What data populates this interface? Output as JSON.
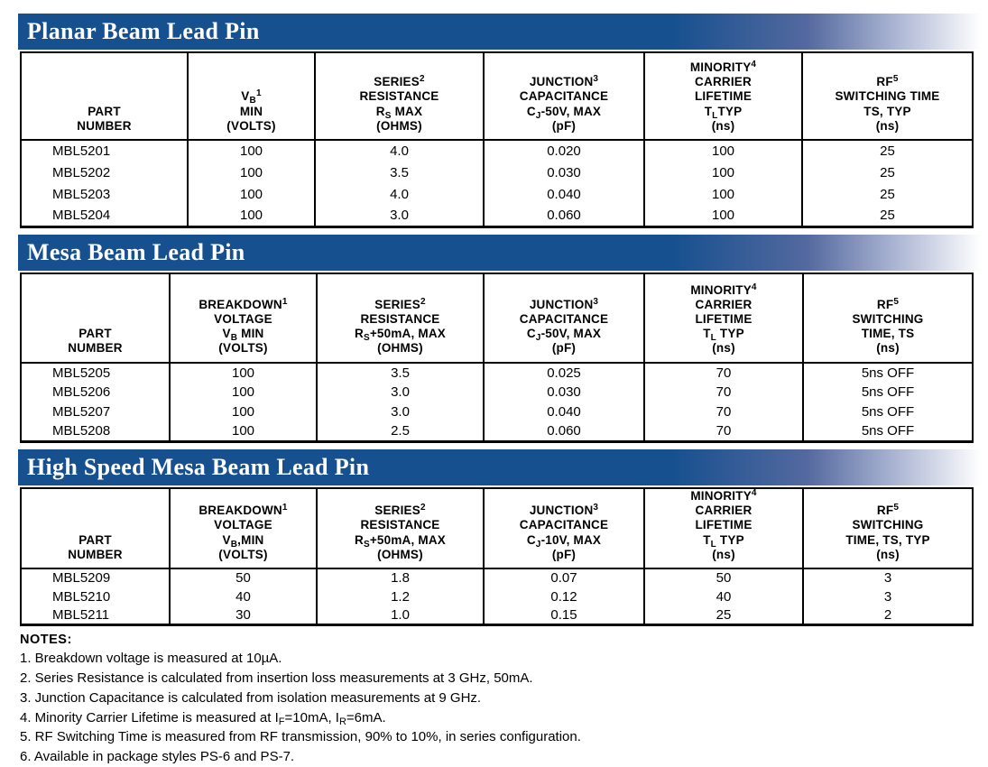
{
  "colors": {
    "bar_blue": "#17508f",
    "border": "#000000",
    "title_text": "#ffffff"
  },
  "sections": [
    {
      "title": "Planar Beam Lead Pin",
      "columns": [
        {
          "lines": [
            "PART",
            "NUMBER"
          ]
        },
        {
          "lines": [
            "V~B~^1^",
            "MIN",
            "(VOLTS)"
          ]
        },
        {
          "lines": [
            "SERIES^2^",
            "RESISTANCE",
            "R~S~ MAX",
            "(OHMS)"
          ]
        },
        {
          "lines": [
            "JUNCTION^3^",
            "CAPACITANCE",
            "C~J~-50V, MAX",
            "(pF)"
          ]
        },
        {
          "lines": [
            "MINORITY^4^",
            "CARRIER",
            "LIFETIME",
            "T~L~TYP",
            "(ns)"
          ]
        },
        {
          "lines": [
            "RF^5^",
            "SWITCHING TIME",
            "TS, TYP",
            "(ns)"
          ]
        }
      ],
      "rows": [
        [
          "MBL5201",
          "100",
          "4.0",
          "0.020",
          "100",
          "25"
        ],
        [
          "MBL5202",
          "100",
          "3.5",
          "0.030",
          "100",
          "25"
        ],
        [
          "MBL5203",
          "100",
          "4.0",
          "0.040",
          "100",
          "25"
        ],
        [
          "MBL5204",
          "100",
          "3.0",
          "0.060",
          "100",
          "25"
        ]
      ]
    },
    {
      "title": "Mesa Beam Lead Pin",
      "columns": [
        {
          "lines": [
            "PART",
            "NUMBER"
          ]
        },
        {
          "lines": [
            "BREAKDOWN^1^",
            "VOLTAGE",
            "V~B~ MIN",
            "(VOLTS)"
          ]
        },
        {
          "lines": [
            "SERIES^2^",
            "RESISTANCE",
            "R~S~+50mA, MAX",
            "(OHMS)"
          ]
        },
        {
          "lines": [
            "JUNCTION^3^",
            "CAPACITANCE",
            "C~J~-50V, MAX",
            "(pF)"
          ]
        },
        {
          "lines": [
            "MINORITY^4^",
            "CARRIER",
            "LIFETIME",
            "T~L~ TYP",
            "(ns)"
          ]
        },
        {
          "lines": [
            "RF^5^",
            "SWITCHING",
            "TIME, TS",
            "(ns)"
          ]
        }
      ],
      "rows": [
        [
          "MBL5205",
          "100",
          "3.5",
          "0.025",
          "70",
          "5ns OFF"
        ],
        [
          "MBL5206",
          "100",
          "3.0",
          "0.030",
          "70",
          "5ns OFF"
        ],
        [
          "MBL5207",
          "100",
          "3.0",
          "0.040",
          "70",
          "5ns OFF"
        ],
        [
          "MBL5208",
          "100",
          "2.5",
          "0.060",
          "70",
          "5ns OFF"
        ]
      ]
    },
    {
      "title": "High Speed Mesa Beam Lead Pin",
      "columns": [
        {
          "lines": [
            "PART",
            "NUMBER"
          ]
        },
        {
          "lines": [
            "BREAKDOWN^1^",
            "VOLTAGE",
            "V~B~,MIN",
            "(VOLTS)"
          ]
        },
        {
          "lines": [
            "SERIES^2^",
            "RESISTANCE",
            "R~S~+50mA, MAX",
            "(OHMS)"
          ]
        },
        {
          "lines": [
            "JUNCTION^3^",
            "CAPACITANCE",
            "C~J~-10V, MAX",
            "(pF)"
          ]
        },
        {
          "lines": [
            "MINORITY^4^",
            "CARRIER",
            "LIFETIME",
            "T~L~ TYP",
            "(ns)"
          ]
        },
        {
          "lines": [
            "RF^5^",
            "SWITCHING",
            "TIME, TS, TYP",
            "(ns)"
          ]
        }
      ],
      "rows": [
        [
          "MBL5209",
          "50",
          "1.8",
          "0.07",
          "50",
          "3"
        ],
        [
          "MBL5210",
          "40",
          "1.2",
          "0.12",
          "40",
          "3"
        ],
        [
          "MBL5211",
          "30",
          "1.0",
          "0.15",
          "25",
          "2"
        ]
      ]
    }
  ],
  "notes": {
    "heading": "NOTES:",
    "items": [
      "1. Breakdown voltage is measured at 10µA.",
      "2. Series Resistance is calculated from insertion loss measurements at 3 GHz, 50mA.",
      "3. Junction Capacitance is calculated from isolation measurements at 9 GHz.",
      "4. Minority Carrier Lifetime is measured at I~F~=10mA, I~R~=6mA.",
      "5. RF Switching Time is measured from RF transmission, 90% to 10%, in series configuration.",
      "6. Available in package styles PS-6 and PS-7."
    ]
  }
}
